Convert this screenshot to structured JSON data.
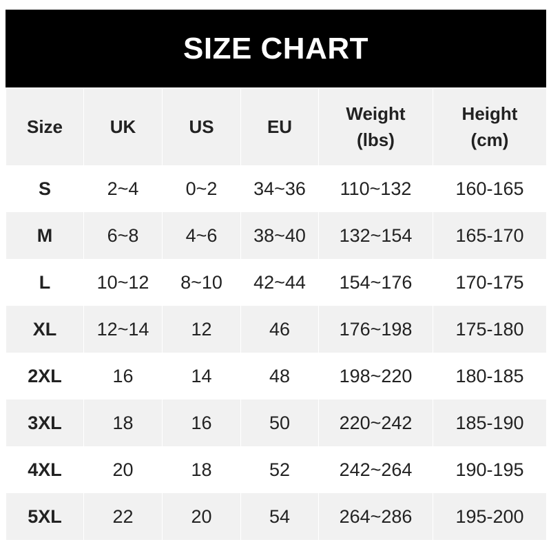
{
  "title": "SIZE CHART",
  "headers": [
    {
      "line1": "Size",
      "line2": ""
    },
    {
      "line1": "UK",
      "line2": ""
    },
    {
      "line1": "US",
      "line2": ""
    },
    {
      "line1": "EU",
      "line2": ""
    },
    {
      "line1": "Weight",
      "line2": "(lbs)"
    },
    {
      "line1": "Height",
      "line2": "(cm)"
    }
  ],
  "rows": [
    [
      "S",
      "2~4",
      "0~2",
      "34~36",
      "110~132",
      "160-165"
    ],
    [
      "M",
      "6~8",
      "4~6",
      "38~40",
      "132~154",
      "165-170"
    ],
    [
      "L",
      "10~12",
      "8~10",
      "42~44",
      "154~176",
      "170-175"
    ],
    [
      "XL",
      "12~14",
      "12",
      "46",
      "176~198",
      "175-180"
    ],
    [
      "2XL",
      "16",
      "14",
      "48",
      "198~220",
      "180-185"
    ],
    [
      "3XL",
      "18",
      "16",
      "50",
      "220~242",
      "185-190"
    ],
    [
      "4XL",
      "20",
      "18",
      "52",
      "242~264",
      "190-195"
    ],
    [
      "5XL",
      "22",
      "20",
      "54",
      "264~286",
      "195-200"
    ]
  ],
  "colors": {
    "header_bg": "#000000",
    "stripe": "#f1f1f1",
    "text": "#222222"
  }
}
